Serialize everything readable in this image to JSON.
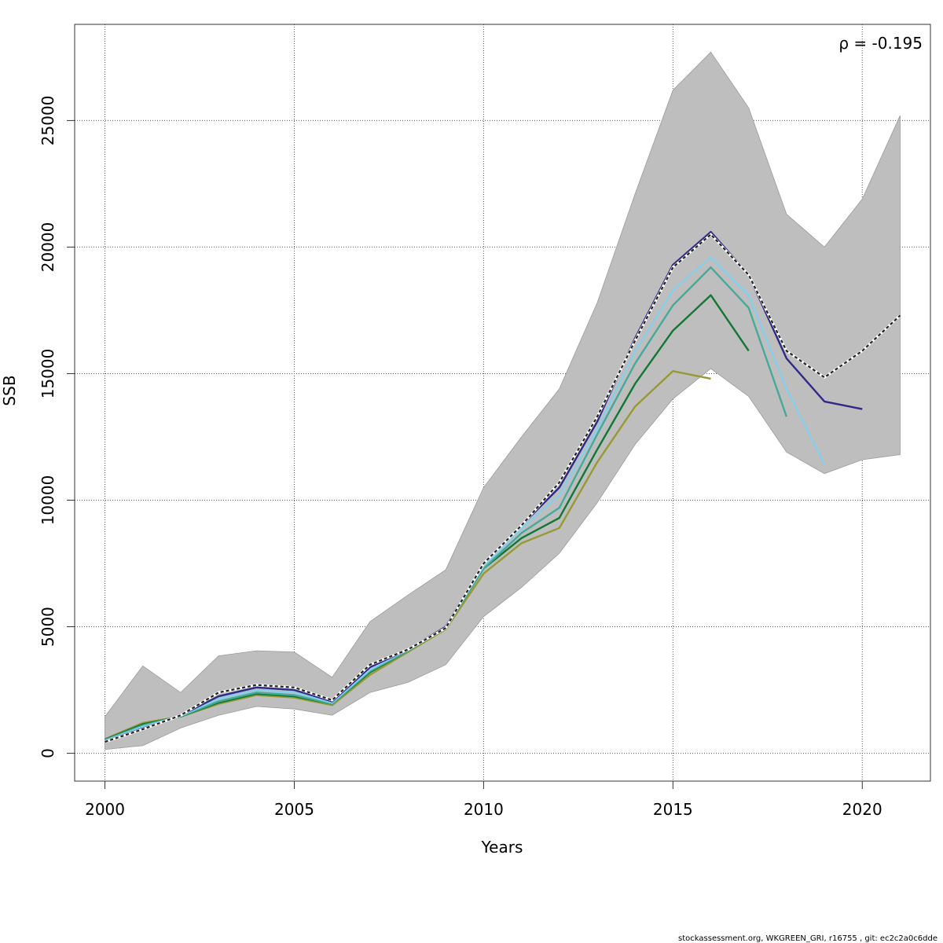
{
  "chart_data": {
    "type": "line",
    "annotation": "ρ = -0.195",
    "xlabel": "Years",
    "ylabel": "SSB",
    "xlim": [
      1999.2,
      2021.8
    ],
    "ylim": [
      -1100,
      28800
    ],
    "xticks": [
      2000,
      2005,
      2010,
      2015,
      2020
    ],
    "yticks": [
      0,
      5000,
      10000,
      15000,
      20000,
      25000
    ],
    "x_tick_labels": [
      "2000",
      "2005",
      "2010",
      "2015",
      "2020"
    ],
    "y_tick_labels": [
      "0",
      "5000",
      "10000",
      "15000",
      "20000",
      "25000"
    ],
    "grid": true,
    "confidence_band": {
      "color": "#bebebe",
      "x": [
        2000,
        2001,
        2002,
        2003,
        2004,
        2005,
        2006,
        2007,
        2008,
        2009,
        2010,
        2011,
        2012,
        2013,
        2014,
        2015,
        2016,
        2017,
        2018,
        2019,
        2020,
        2021
      ],
      "upper": [
        1450,
        3450,
        2400,
        3850,
        4050,
        4000,
        3000,
        5200,
        6250,
        7250,
        10500,
        12500,
        14400,
        17800,
        22100,
        26200,
        27700,
        25500,
        21300,
        20000,
        21900,
        25200
      ],
      "lower": [
        150,
        300,
        1000,
        1500,
        1850,
        1750,
        1500,
        2400,
        2800,
        3500,
        5400,
        6550,
        7900,
        9900,
        12200,
        14000,
        15200,
        14100,
        11900,
        11050,
        11600,
        11800
      ]
    },
    "series": [
      {
        "color": "#222222",
        "dashed": true,
        "x": [
          2000,
          2001,
          2002,
          2003,
          2004,
          2005,
          2006,
          2007,
          2008,
          2009,
          2010,
          2011,
          2012,
          2013,
          2014,
          2015,
          2016,
          2017,
          2018,
          2019,
          2020,
          2021
        ],
        "values": [
          450,
          950,
          1500,
          2400,
          2700,
          2600,
          2100,
          3500,
          4100,
          4950,
          7500,
          9000,
          10700,
          13300,
          16300,
          19200,
          20500,
          18900,
          15900,
          14850,
          15900,
          17300
        ]
      },
      {
        "color": "#2e2a85",
        "dashed": false,
        "x": [
          2000,
          2001,
          2002,
          2003,
          2004,
          2005,
          2006,
          2007,
          2008,
          2009,
          2010,
          2011,
          2012,
          2013,
          2014,
          2015,
          2016,
          2017,
          2018,
          2019,
          2020
        ],
        "values": [
          470,
          980,
          1500,
          2250,
          2600,
          2500,
          2050,
          3400,
          4100,
          5000,
          7500,
          9000,
          10500,
          13100,
          16400,
          19300,
          20600,
          18900,
          15600,
          13900,
          13600
        ]
      },
      {
        "color": "#87ceeb",
        "dashed": false,
        "x": [
          2000,
          2001,
          2002,
          2003,
          2004,
          2005,
          2006,
          2007,
          2008,
          2009,
          2010,
          2011,
          2012,
          2013,
          2014,
          2015,
          2016,
          2017,
          2018,
          2019
        ],
        "values": [
          500,
          1050,
          1480,
          2150,
          2500,
          2400,
          2000,
          3300,
          4100,
          5000,
          7400,
          8900,
          10200,
          12800,
          15900,
          18300,
          19600,
          18100,
          14400,
          11400
        ]
      },
      {
        "color": "#44aa99",
        "dashed": false,
        "x": [
          2000,
          2001,
          2002,
          2003,
          2004,
          2005,
          2006,
          2007,
          2008,
          2009,
          2010,
          2011,
          2012,
          2013,
          2014,
          2015,
          2016,
          2017,
          2018
        ],
        "values": [
          520,
          1100,
          1460,
          2050,
          2400,
          2300,
          1950,
          3250,
          4050,
          4950,
          7300,
          8700,
          9700,
          12600,
          15400,
          17700,
          19200,
          17600,
          13300
        ]
      },
      {
        "color": "#117733",
        "dashed": false,
        "x": [
          2000,
          2001,
          2002,
          2003,
          2004,
          2005,
          2006,
          2007,
          2008,
          2009,
          2010,
          2011,
          2012,
          2013,
          2014,
          2015,
          2016,
          2017
        ],
        "values": [
          540,
          1150,
          1450,
          2000,
          2350,
          2250,
          1950,
          3200,
          4050,
          4950,
          7300,
          8500,
          9300,
          12000,
          14600,
          16700,
          18100,
          15900
        ]
      },
      {
        "color": "#999933",
        "dashed": false,
        "x": [
          2000,
          2001,
          2002,
          2003,
          2004,
          2005,
          2006,
          2007,
          2008,
          2009,
          2010,
          2011,
          2012,
          2013,
          2014,
          2015,
          2016
        ],
        "values": [
          560,
          1200,
          1450,
          1950,
          2300,
          2200,
          1900,
          3100,
          4000,
          4900,
          7100,
          8300,
          8900,
          11500,
          13700,
          15100,
          14800
        ]
      }
    ]
  },
  "footer": "stockassessment.org, WKGREEN_GRI, r16755 , git: ec2c2a0c6dde"
}
